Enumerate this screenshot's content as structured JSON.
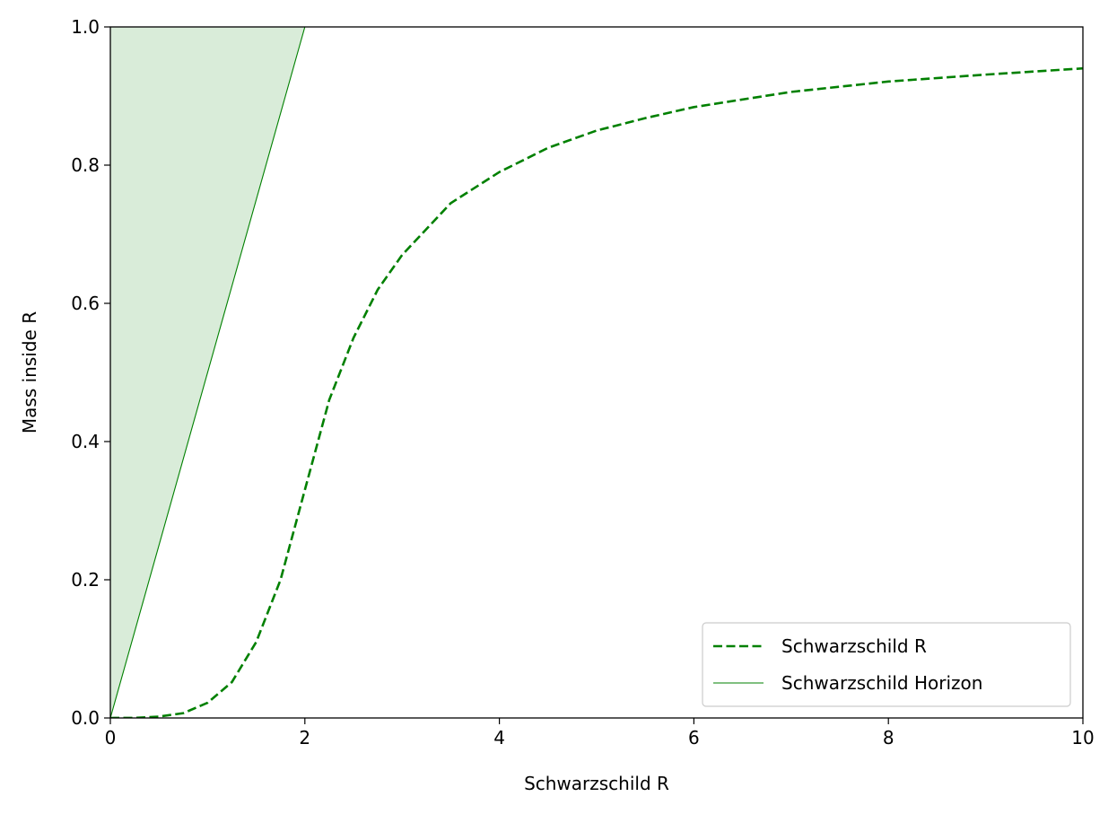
{
  "chart_data": {
    "type": "line",
    "title": "",
    "xlabel": "Schwarzschild R",
    "ylabel": "Mass inside R",
    "xlim": [
      0,
      10
    ],
    "ylim": [
      0,
      1
    ],
    "x_ticks": [
      "0",
      "2",
      "4",
      "6",
      "8",
      "10"
    ],
    "y_ticks": [
      "0.0",
      "0.2",
      "0.4",
      "0.6",
      "0.8",
      "1.0"
    ],
    "grid": false,
    "legend_position": "bottom-right",
    "series": [
      {
        "name": "Schwarzschild R",
        "style": "dashed",
        "color": "#008000",
        "x": [
          0,
          0.25,
          0.5,
          0.75,
          1.0,
          1.25,
          1.5,
          1.75,
          2.0,
          2.25,
          2.5,
          2.75,
          3.0,
          3.5,
          4.0,
          4.5,
          5.0,
          5.5,
          6.0,
          7.0,
          8.0,
          9.0,
          10.0
        ],
        "y": [
          0.0,
          0.0002,
          0.002,
          0.007,
          0.022,
          0.052,
          0.11,
          0.2,
          0.33,
          0.46,
          0.55,
          0.62,
          0.67,
          0.745,
          0.79,
          0.825,
          0.85,
          0.868,
          0.884,
          0.906,
          0.921,
          0.931,
          0.94
        ]
      },
      {
        "name": "Schwarzschild Horizon",
        "style": "solid",
        "color": "#008000",
        "x": [
          0,
          2
        ],
        "y": [
          0,
          1
        ]
      }
    ],
    "shaded_region": {
      "description_color": "#d9ecd9",
      "between": "y-axis and Schwarzschild Horizon"
    }
  }
}
